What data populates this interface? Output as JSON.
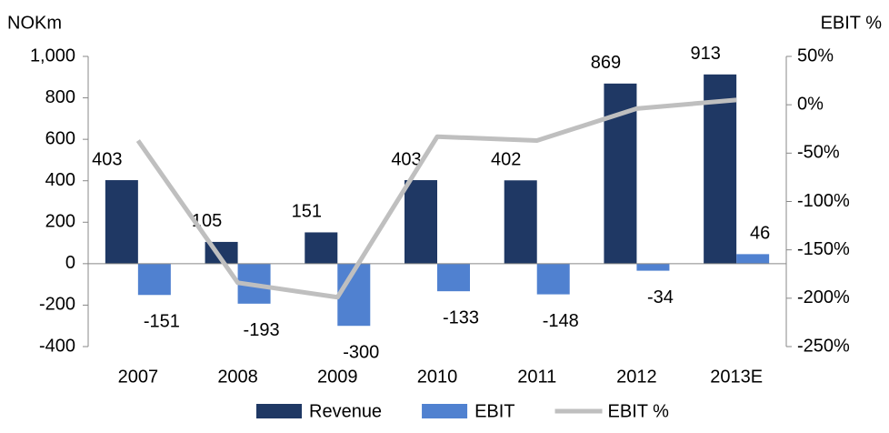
{
  "chart_data": {
    "type": "bar_line",
    "ylabel": "NOKm",
    "y2label": "EBIT %",
    "categories": [
      "2007",
      "2008",
      "2009",
      "2010",
      "2011",
      "2012",
      "2013E"
    ],
    "series": [
      {
        "name": "Revenue",
        "type": "bar",
        "color": "#1f3864",
        "values": [
          403,
          105,
          151,
          403,
          402,
          869,
          913
        ]
      },
      {
        "name": "EBIT",
        "type": "bar",
        "color": "#5081d0",
        "values": [
          -151,
          -193,
          -300,
          -133,
          -148,
          -34,
          46
        ]
      },
      {
        "name": "EBIT %",
        "type": "line",
        "axis": "y2",
        "color": "#bfbfbf",
        "values": [
          -37,
          -184,
          -199,
          -33,
          -37,
          -4,
          5
        ]
      }
    ],
    "ylim": [
      -400,
      1000
    ],
    "yticks": [
      -400,
      -200,
      0,
      200,
      400,
      600,
      800,
      {
        "value": 1000,
        "label": "1,000"
      }
    ],
    "y2lim": [
      -250,
      50
    ],
    "y2ticks": [
      {
        "value": -250,
        "label": "-250%"
      },
      {
        "value": -200,
        "label": "-200%"
      },
      {
        "value": -150,
        "label": "-150%"
      },
      {
        "value": -100,
        "label": "-100%"
      },
      {
        "value": -50,
        "label": "-50%"
      },
      {
        "value": 0,
        "label": "0%"
      },
      {
        "value": 50,
        "label": "50%"
      }
    ],
    "legend": "bottom"
  }
}
